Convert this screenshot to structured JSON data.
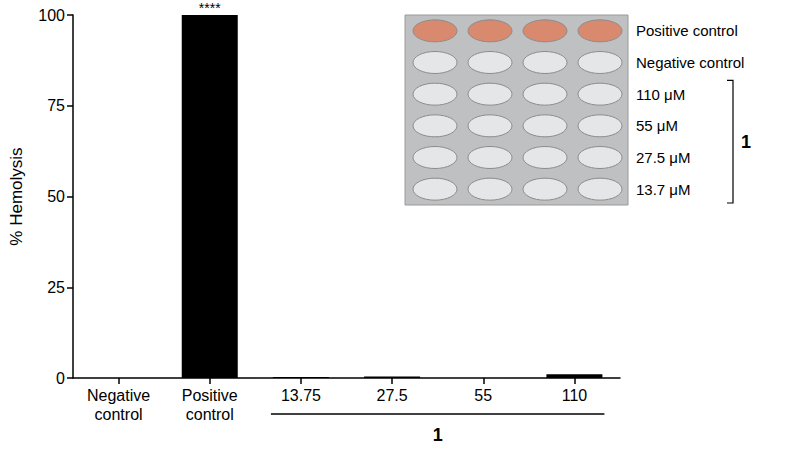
{
  "chart_data": {
    "type": "bar",
    "y_label": "% Hemolysis",
    "categories": [
      "Negative control",
      "Positive control",
      "13.75",
      "27.5",
      "55",
      "110"
    ],
    "values": [
      0,
      100,
      0.3,
      0.4,
      0,
      1.0
    ],
    "color": "#000000",
    "ylim": [
      0,
      100
    ],
    "yticks": [
      0,
      25,
      50,
      75,
      100
    ],
    "grid": false,
    "annotations": [
      {
        "category": "Positive control",
        "text": "****"
      }
    ],
    "groups": [
      {
        "label": "1",
        "categories": [
          "13.75",
          "27.5",
          "55",
          "110"
        ]
      }
    ],
    "inset": {
      "rows": [
        "Positive control",
        "Negative control",
        "110 μM",
        "55 μM",
        "27.5 μM",
        "13.7 μM"
      ],
      "group": {
        "label": "1",
        "rows": [
          "110 μM",
          "55 μM",
          "27.5 μM",
          "13.7 μM"
        ]
      }
    }
  }
}
